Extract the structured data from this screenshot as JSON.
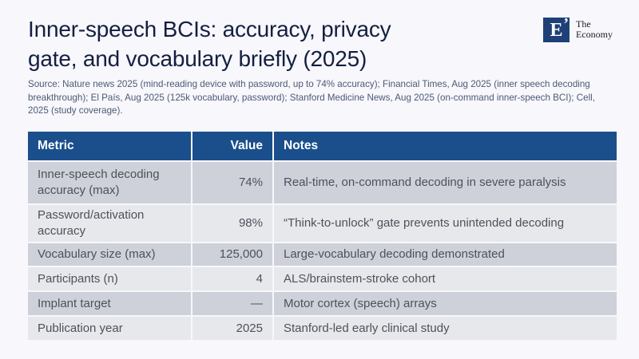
{
  "colors": {
    "page_background": "#f7f7fc",
    "title_text": "#141f40",
    "source_text": "#4c5a74",
    "table_header_bg": "#1a4f8c",
    "table_header_text": "#ffffff",
    "row_dark_bg": "#ced1d9",
    "row_light_bg": "#e7e8ec",
    "cell_text": "#4c525a",
    "logo_navy": "#1e4077"
  },
  "header": {
    "title_lines": [
      "Inner-speech BCIs: accuracy, privacy",
      "gate, and vocabulary briefly (2025)"
    ]
  },
  "logo": {
    "mark": "E",
    "quote_mark": "’",
    "name_line1": "The",
    "name_line2": "Economy"
  },
  "source": "Source: Nature news 2025 (mind-reading device with password, up to 74% accuracy); Financial Times, Aug 2025 (inner speech decoding breakthrough); El País, Aug 2025 (125k vocabulary, password); Stanford Medicine News, Aug 2025 (on-command inner-speech BCI); Cell, 2025 (study coverage).",
  "chart_data": {
    "type": "table",
    "title": "Inner-speech BCIs: accuracy, privacy gate, and vocabulary briefly (2025)",
    "columns": [
      "Metric",
      "Value",
      "Notes"
    ],
    "rows": [
      {
        "metric": "Inner-speech decoding accuracy (max)",
        "value": "74%",
        "notes": "Real-time, on-command decoding in severe paralysis"
      },
      {
        "metric": "Password/activation accuracy",
        "value": "98%",
        "notes": "“Think-to-unlock” gate prevents unintended decoding"
      },
      {
        "metric": "Vocabulary size (max)",
        "value": "125,000",
        "notes": "Large-vocabulary decoding demonstrated"
      },
      {
        "metric": "Participants (n)",
        "value": "4",
        "notes": "ALS/brainstem-stroke cohort"
      },
      {
        "metric": "Implant target",
        "value": "—",
        "notes": "Motor cortex (speech) arrays"
      },
      {
        "metric": "Publication year",
        "value": "2025",
        "notes": "Stanford-led early clinical study"
      }
    ]
  }
}
